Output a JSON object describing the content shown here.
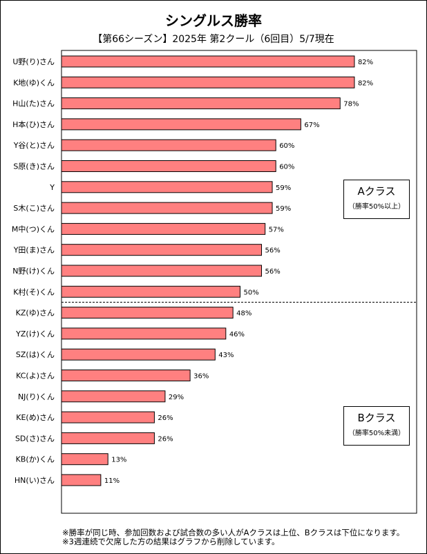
{
  "title": "シングルス勝率",
  "subtitle": "【第66シーズン】2025年 第2クール（6回目）5/7現在",
  "chart_data": {
    "type": "bar",
    "orientation": "horizontal",
    "categories": [
      "U野(り)さん",
      "K地(ゆ)くん",
      "H山(た)さん",
      "H本(ひ)さん",
      "Y谷(と)さん",
      "S原(き)さん",
      "Y",
      "S木(こ)さん",
      "M中(つ)くん",
      "Y田(ま)さん",
      "N野(け)くん",
      "K村(そ)くん",
      "KZ(ゆ)さん",
      "YZ(け)くん",
      "SZ(は)くん",
      "KC(よ)さん",
      "NJ(り)くん",
      "KE(め)さん",
      "SD(さ)さん",
      "KB(か)くん",
      "HN(い)さん"
    ],
    "values": [
      82,
      82,
      78,
      67,
      60,
      60,
      59,
      59,
      57,
      56,
      56,
      50,
      48,
      46,
      43,
      36,
      29,
      26,
      26,
      13,
      11
    ],
    "value_labels": [
      "82%",
      "82%",
      "78%",
      "67%",
      "60%",
      "60%",
      "59%",
      "59%",
      "57%",
      "56%",
      "56%",
      "50%",
      "48%",
      "46%",
      "43%",
      "36%",
      "29%",
      "26%",
      "26%",
      "13%",
      "11%"
    ],
    "xlim": [
      0,
      100
    ],
    "grid": false,
    "legend": "none",
    "bar_color": "#ff8080",
    "group_split_after": 12
  },
  "class_a": {
    "label": "Aクラス",
    "note": "（勝率50%以上）"
  },
  "class_b": {
    "label": "Bクラス",
    "note": "（勝率50%未満）"
  },
  "notes": [
    "※勝率が同じ時、参加回数および試合数の多い人がAクラスは上位、Bクラスは下位になります。",
    "※3週連続で欠席した方の結果はグラフから削除しています。"
  ]
}
